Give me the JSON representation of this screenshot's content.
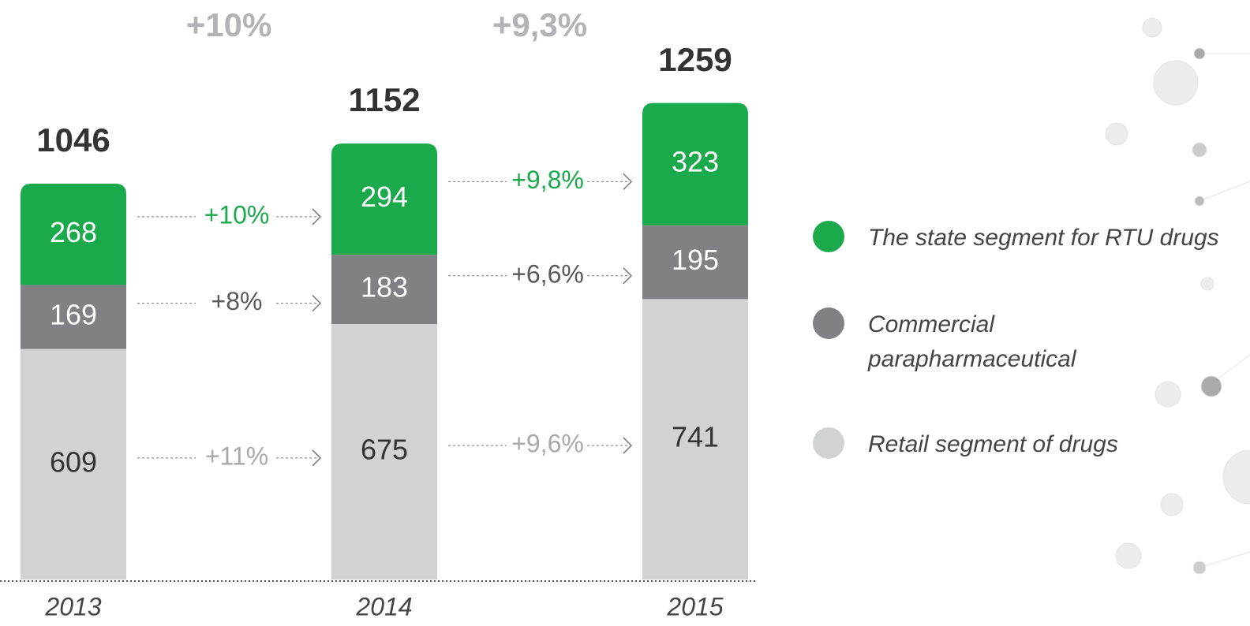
{
  "chart_data": {
    "type": "stacked_bar",
    "categories": [
      "2013",
      "2014",
      "2015"
    ],
    "totals": [
      1046,
      1152,
      1259
    ],
    "total_growth": [
      "+10%",
      "+9,3%"
    ],
    "series": [
      {
        "name": "Retail segment of drugs",
        "color": "#d1d2d4",
        "values": [
          609,
          675,
          741
        ],
        "growth": [
          "+11%",
          "+9,6%"
        ]
      },
      {
        "name": "Commercial parapharmaceutical",
        "color": "#808184",
        "values": [
          169,
          183,
          195
        ],
        "growth": [
          "+8%",
          "+6,6%"
        ]
      },
      {
        "name": "The state segment for RTU drugs",
        "color": "#1aaa4b",
        "values": [
          268,
          294,
          323
        ],
        "growth": [
          "+10%",
          "+9,8%"
        ]
      }
    ]
  }
}
